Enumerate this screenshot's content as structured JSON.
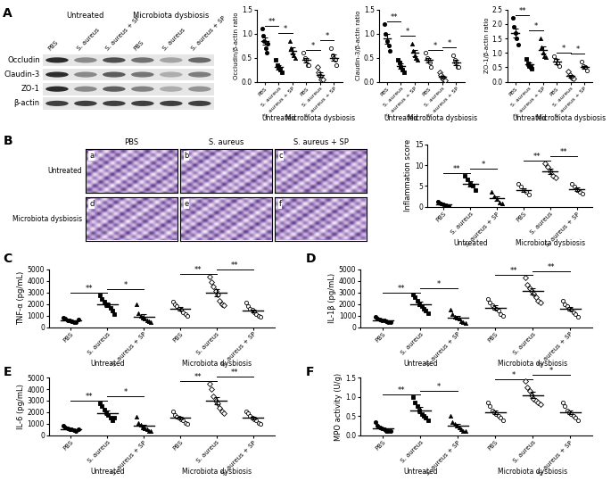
{
  "panel_labels": [
    "A",
    "B",
    "C",
    "D",
    "E",
    "F"
  ],
  "blot": {
    "groups": [
      "Untreated",
      "Microbiota dysbiosis"
    ],
    "lanes": [
      "PBS",
      "S. aureus",
      "S. aureus + SP",
      "PBS",
      "S. aureus",
      "S. aureus + SP"
    ],
    "bands": [
      "Occludin",
      "Claudin-3",
      "ZO-1",
      "β-actin"
    ]
  },
  "histology": {
    "columns": [
      "PBS",
      "S. aureus",
      "S. aureus + SP"
    ],
    "rows": [
      "Untreated",
      "Microbiota dysbiosis"
    ],
    "letters": [
      "a",
      "b",
      "c",
      "d",
      "e",
      "f"
    ]
  },
  "chart_data": [
    {
      "type": "scatter",
      "ylabel": "Occludin/β-actin ratio",
      "categories": [
        "PBS",
        "S. aureus",
        "S. aureus + SP",
        "PBS",
        "S. aureus",
        "S. aureus + SP"
      ],
      "groups": [
        "Untreated",
        "Microbiota dysbiosis"
      ],
      "ylim": [
        0,
        1.5
      ],
      "yticks": [
        {
          "value": 0.0,
          "label": "0.0"
        },
        {
          "value": 0.5,
          "label": "0.5"
        },
        {
          "value": 1.0,
          "label": "1.0"
        },
        {
          "value": 1.5,
          "label": "1.5"
        }
      ],
      "points": [
        [
          1.1,
          0.95,
          0.85,
          0.7,
          0.6,
          0.8
        ],
        [
          0.45,
          0.35,
          0.3,
          0.25,
          0.2
        ],
        [
          0.85,
          0.7,
          0.6,
          0.55,
          0.5
        ],
        [
          0.6,
          0.5,
          0.45,
          0.35,
          0.35
        ],
        [
          0.3,
          0.2,
          0.12,
          0.05,
          0.05
        ],
        [
          0.7,
          0.55,
          0.5,
          0.45,
          0.35
        ]
      ],
      "means": [
        0.85,
        0.3,
        0.65,
        0.45,
        0.15,
        0.5
      ],
      "errors": [
        0.08,
        0.04,
        0.06,
        0.05,
        0.05,
        0.06
      ],
      "significance": [
        {
          "from": 0,
          "to": 1,
          "label": "**"
        },
        {
          "from": 1,
          "to": 2,
          "label": "*"
        },
        {
          "from": 3,
          "to": 4,
          "label": "*"
        },
        {
          "from": 4,
          "to": 5,
          "label": "*"
        }
      ]
    },
    {
      "type": "scatter",
      "ylabel": "Claudin-3/β-actin ratio",
      "categories": [
        "PBS",
        "S. aureus",
        "S. aureus + SP",
        "PBS",
        "S. aureus",
        "S. aureus + SP"
      ],
      "groups": [
        "Untreated",
        "Microbiota dysbiosis"
      ],
      "ylim": [
        0,
        1.5
      ],
      "yticks": [
        {
          "value": 0.0,
          "label": "0.0"
        },
        {
          "value": 0.5,
          "label": "0.5"
        },
        {
          "value": 1.0,
          "label": "1.0"
        },
        {
          "value": 1.5,
          "label": "1.5"
        }
      ],
      "points": [
        [
          1.2,
          1.0,
          0.85,
          0.75,
          0.65
        ],
        [
          0.45,
          0.4,
          0.3,
          0.25,
          0.2
        ],
        [
          0.8,
          0.65,
          0.55,
          0.5,
          0.45
        ],
        [
          0.6,
          0.5,
          0.45,
          0.4,
          0.3
        ],
        [
          0.2,
          0.15,
          0.1,
          0.05,
          0.03
        ],
        [
          0.55,
          0.45,
          0.4,
          0.3,
          0.3
        ]
      ],
      "means": [
        0.9,
        0.33,
        0.6,
        0.45,
        0.1,
        0.4
      ],
      "errors": [
        0.1,
        0.05,
        0.06,
        0.05,
        0.03,
        0.05
      ],
      "significance": [
        {
          "from": 0,
          "to": 1,
          "label": "**"
        },
        {
          "from": 1,
          "to": 2,
          "label": "*"
        },
        {
          "from": 3,
          "to": 4,
          "label": "*"
        },
        {
          "from": 4,
          "to": 5,
          "label": "*"
        }
      ]
    },
    {
      "type": "scatter",
      "ylabel": "ZO-1/β-actin ratio",
      "categories": [
        "PBS",
        "S. aureus",
        "S. aureus + SP",
        "PBS",
        "S. aureus",
        "S. aureus + SP"
      ],
      "groups": [
        "Untreated",
        "Microbiota dysbiosis"
      ],
      "ylim": [
        0,
        2.5
      ],
      "yticks": [
        {
          "value": 0.0,
          "label": "0.0"
        },
        {
          "value": 0.5,
          "label": "0.5"
        },
        {
          "value": 1.0,
          "label": "1.0"
        },
        {
          "value": 1.5,
          "label": "1.5"
        },
        {
          "value": 2.0,
          "label": "2.0"
        },
        {
          "value": 2.5,
          "label": "2.5"
        }
      ],
      "points": [
        [
          2.2,
          1.9,
          1.7,
          1.5,
          1.3
        ],
        [
          0.8,
          0.65,
          0.55,
          0.5,
          0.45
        ],
        [
          1.5,
          1.2,
          1.0,
          0.9,
          0.85
        ],
        [
          0.9,
          0.75,
          0.65,
          0.55
        ],
        [
          0.35,
          0.25,
          0.15,
          0.1
        ],
        [
          0.7,
          0.55,
          0.5,
          0.4
        ]
      ],
      "means": [
        1.7,
        0.6,
        1.1,
        0.7,
        0.2,
        0.5
      ],
      "errors": [
        0.15,
        0.06,
        0.12,
        0.08,
        0.05,
        0.06
      ],
      "significance": [
        {
          "from": 0,
          "to": 1,
          "label": "**"
        },
        {
          "from": 1,
          "to": 2,
          "label": "*"
        },
        {
          "from": 3,
          "to": 4,
          "label": "*"
        },
        {
          "from": 4,
          "to": 5,
          "label": "*"
        }
      ]
    },
    {
      "type": "scatter",
      "ylabel": "Inflammation score",
      "categories": [
        "PBS",
        "S. aureus",
        "S. aureus + SP",
        "PBS",
        "S. aureus",
        "S. aureus + SP"
      ],
      "groups": [
        "Untreated",
        "Microbiota dysbiosis"
      ],
      "ylim": [
        0,
        15
      ],
      "yticks": [
        0,
        5,
        10,
        15
      ],
      "points": [
        [
          1.2,
          0.8,
          0.5,
          0.3,
          0.1
        ],
        [
          7.5,
          6.5,
          5.5,
          5,
          4
        ],
        [
          3.5,
          2.5,
          1.8,
          1,
          0.8
        ],
        [
          5.5,
          4.8,
          4,
          3.5,
          3
        ],
        [
          10.5,
          9.5,
          8.5,
          7.5,
          7
        ],
        [
          5.5,
          4.8,
          4,
          3.6,
          3.2
        ]
      ],
      "means": [
        0.5,
        5.5,
        2,
        4,
        8.5,
        4.2
      ],
      "errors": [
        0.2,
        0.6,
        0.5,
        0.5,
        0.7,
        0.4
      ],
      "significance": [
        {
          "from": 0,
          "to": 1,
          "label": "**"
        },
        {
          "from": 1,
          "to": 2,
          "label": "*"
        },
        {
          "from": 3,
          "to": 4,
          "label": "**"
        },
        {
          "from": 4,
          "to": 5,
          "label": "**"
        }
      ]
    },
    {
      "type": "scatter",
      "ylabel": "TNF-α (pg/mL)",
      "categories": [
        "PBS",
        "S. aureus",
        "S. aureus + SP",
        "PBS",
        "S. aureus",
        "S. aureus + SP"
      ],
      "groups": [
        "Untreated",
        "Microbiota dysbiosis"
      ],
      "ylim": [
        0,
        5000
      ],
      "yticks": [
        0,
        1000,
        2000,
        3000,
        4000,
        5000
      ],
      "points": [
        [
          850,
          700,
          600,
          550,
          500,
          450,
          400,
          650
        ],
        [
          2750,
          2400,
          2200,
          2000,
          1900,
          1700,
          1450,
          1150
        ],
        [
          2000,
          1200,
          1000,
          800,
          700,
          600,
          500,
          400
        ],
        [
          2200,
          2000,
          1800,
          1600,
          1500,
          1300,
          1100,
          1000
        ],
        [
          4400,
          3900,
          3500,
          3100,
          2800,
          2300,
          2000,
          1900
        ],
        [
          2100,
          1800,
          1600,
          1500,
          1300,
          1100,
          1000,
          900
        ]
      ],
      "means": [
        600,
        1950,
        900,
        1600,
        3000,
        1400
      ],
      "errors": [
        60,
        190,
        190,
        150,
        320,
        140
      ],
      "significance": [
        {
          "from": 0,
          "to": 1,
          "label": "**"
        },
        {
          "from": 1,
          "to": 2,
          "label": "*"
        },
        {
          "from": 3,
          "to": 4,
          "label": "**"
        },
        {
          "from": 4,
          "to": 5,
          "label": "**"
        }
      ]
    },
    {
      "type": "scatter",
      "ylabel": "IL-1β (pg/mL)",
      "categories": [
        "PBS",
        "S. aureus",
        "S. aureus + SP",
        "PBS",
        "S. aureus",
        "S. aureus + SP"
      ],
      "groups": [
        "Untreated",
        "Microbiota dysbiosis"
      ],
      "ylim": [
        0,
        5000
      ],
      "yticks": [
        0,
        1000,
        2000,
        3000,
        4000,
        5000
      ],
      "points": [
        [
          900,
          700,
          650,
          600,
          550,
          500,
          400,
          450
        ],
        [
          2800,
          2600,
          2300,
          2000,
          1800,
          1600,
          1400,
          1200
        ],
        [
          1500,
          1100,
          900,
          800,
          700,
          500,
          400,
          350
        ],
        [
          2400,
          2100,
          1900,
          1700,
          1600,
          1400,
          1100,
          1000
        ],
        [
          4300,
          3700,
          3400,
          3100,
          2900,
          2600,
          2300,
          2100
        ],
        [
          2300,
          2000,
          1800,
          1600,
          1500,
          1300,
          1100,
          900
        ]
      ],
      "means": [
        600,
        2000,
        800,
        1700,
        3100,
        1600
      ],
      "errors": [
        60,
        200,
        140,
        170,
        250,
        160
      ],
      "significance": [
        {
          "from": 0,
          "to": 1,
          "label": "**"
        },
        {
          "from": 1,
          "to": 2,
          "label": "*"
        },
        {
          "from": 3,
          "to": 4,
          "label": "**"
        },
        {
          "from": 4,
          "to": 5,
          "label": "**"
        }
      ]
    },
    {
      "type": "scatter",
      "ylabel": "IL-6 (pg/mL)",
      "categories": [
        "PBS",
        "S. aureus",
        "S. aureus + SP",
        "PBS",
        "S. aureus",
        "S. aureus + SP"
      ],
      "groups": [
        "Untreated",
        "Microbiota dysbiosis"
      ],
      "ylim": [
        0,
        5000
      ],
      "yticks": [
        0,
        1000,
        2000,
        3000,
        4000,
        5000
      ],
      "points": [
        [
          800,
          650,
          600,
          550,
          500,
          450,
          400,
          500
        ],
        [
          2800,
          2500,
          2200,
          2000,
          1800,
          1500,
          1300,
          1500
        ],
        [
          1600,
          1100,
          900,
          700,
          600,
          500,
          400,
          400
        ],
        [
          2100,
          1800,
          1600,
          1500,
          1400,
          1300,
          1100,
          1000
        ],
        [
          4500,
          4000,
          3400,
          3000,
          2800,
          2400,
          2100,
          1900
        ],
        [
          2100,
          1900,
          1700,
          1500,
          1400,
          1300,
          1100,
          1000
        ]
      ],
      "means": [
        550,
        1950,
        800,
        1500,
        3000,
        1500
      ],
      "errors": [
        50,
        180,
        150,
        120,
        310,
        130
      ],
      "significance": [
        {
          "from": 0,
          "to": 1,
          "label": "**"
        },
        {
          "from": 1,
          "to": 2,
          "label": "*"
        },
        {
          "from": 3,
          "to": 4,
          "label": "**"
        },
        {
          "from": 4,
          "to": 5,
          "label": "**"
        }
      ]
    },
    {
      "type": "scatter",
      "ylabel": "MPO activity (U/g)",
      "categories": [
        "PBS",
        "S. aureus",
        "S. aureus + SP",
        "PBS",
        "S. aureus",
        "S. aureus + SP"
      ],
      "groups": [
        "Untreated",
        "Microbiota dysbiosis"
      ],
      "ylim": [
        0,
        1.5
      ],
      "yticks": [
        {
          "value": 0.0,
          "label": "0.0"
        },
        {
          "value": 0.5,
          "label": "0.5"
        },
        {
          "value": 1.0,
          "label": "1.0"
        },
        {
          "value": 1.5,
          "label": "1.5"
        }
      ],
      "points": [
        [
          0.35,
          0.25,
          0.2,
          0.18,
          0.15,
          0.12,
          0.1,
          0.1
        ],
        [
          1.0,
          0.85,
          0.75,
          0.65,
          0.55,
          0.5,
          0.45,
          0.4
        ],
        [
          0.5,
          0.35,
          0.3,
          0.25,
          0.2,
          0.15,
          0.12,
          0.1
        ],
        [
          0.85,
          0.75,
          0.65,
          0.6,
          0.55,
          0.5,
          0.45,
          0.4
        ],
        [
          1.4,
          1.25,
          1.15,
          1.05,
          0.95,
          0.9,
          0.85,
          0.8
        ],
        [
          0.85,
          0.75,
          0.65,
          0.6,
          0.55,
          0.5,
          0.45,
          0.4
        ]
      ],
      "means": [
        0.18,
        0.65,
        0.25,
        0.6,
        1.05,
        0.6
      ],
      "errors": [
        0.03,
        0.08,
        0.05,
        0.05,
        0.08,
        0.05
      ],
      "significance": [
        {
          "from": 0,
          "to": 1,
          "label": "**"
        },
        {
          "from": 1,
          "to": 2,
          "label": "*"
        },
        {
          "from": 3,
          "to": 4,
          "label": "*"
        },
        {
          "from": 4,
          "to": 5,
          "label": "*"
        }
      ]
    }
  ]
}
